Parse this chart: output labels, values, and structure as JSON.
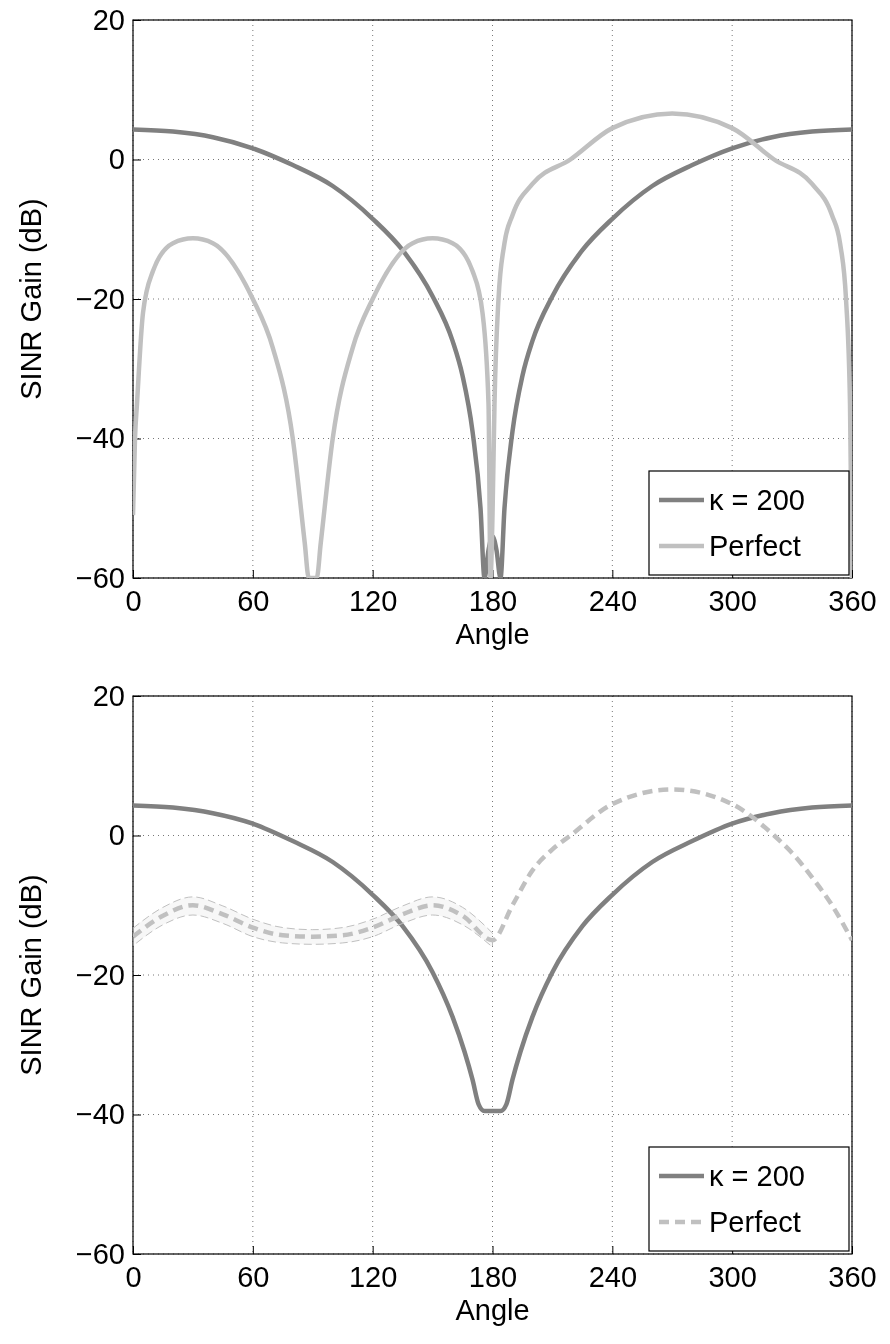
{
  "chart_data": [
    {
      "type": "line",
      "xlabel": "Angle",
      "ylabel": "SINR Gain (dB)",
      "xlim": [
        0,
        360
      ],
      "ylim": [
        -60,
        20
      ],
      "xticks": [
        0,
        60,
        120,
        180,
        240,
        300,
        360
      ],
      "yticks": [
        -60,
        -40,
        -20,
        0,
        20
      ],
      "grid": true,
      "legend": "bottom right",
      "series": [
        {
          "name": "κ = 200",
          "color": "#808080",
          "line_style": "solid",
          "x": [
            0,
            20,
            40,
            60,
            80,
            100,
            120,
            135,
            150,
            160,
            165,
            170,
            174,
            176,
            178,
            180,
            182,
            184,
            186,
            190,
            195,
            200,
            210,
            225,
            240,
            260,
            280,
            300,
            320,
            340,
            360
          ],
          "values": [
            4.3,
            4.0,
            3.2,
            1.6,
            -0.8,
            -3.8,
            -8.5,
            -13,
            -19.6,
            -26,
            -31,
            -39,
            -50,
            -60,
            -56,
            -54,
            -56,
            -60,
            -50,
            -39,
            -31,
            -26,
            -19.6,
            -13,
            -8.5,
            -3.8,
            -0.8,
            1.6,
            3.2,
            4.0,
            4.3
          ]
        },
        {
          "name": "Perfect",
          "color": "#c0c0c0",
          "line_style": "solid",
          "x": [
            0,
            1,
            2,
            5,
            10,
            20,
            30,
            40,
            60,
            70,
            80,
            86,
            88,
            92,
            94,
            100,
            110,
            120,
            140,
            150,
            160,
            170,
            175,
            178,
            179,
            180,
            181,
            183,
            186,
            190,
            200,
            219,
            240,
            270,
            300,
            321,
            340,
            350,
            354,
            357,
            359,
            360
          ],
          "values": [
            -51,
            -40,
            -35,
            -22,
            -16,
            -12,
            -11.3,
            -12,
            -20,
            -27,
            -40,
            -55,
            -60,
            -60,
            -55,
            -40,
            -27,
            -20,
            -12,
            -11.3,
            -12,
            -16,
            -22,
            -35,
            -60,
            -51,
            -35,
            -20,
            -12,
            -8,
            -3.5,
            0,
            4.5,
            6.6,
            4.5,
            0,
            -3.5,
            -8,
            -12,
            -20,
            -35,
            -60
          ]
        }
      ]
    },
    {
      "type": "line",
      "xlabel": "Angle",
      "ylabel": "SINR Gain (dB)",
      "xlim": [
        0,
        360
      ],
      "ylim": [
        -60,
        20
      ],
      "xticks": [
        0,
        60,
        120,
        180,
        240,
        300,
        360
      ],
      "yticks": [
        -60,
        -40,
        -20,
        0,
        20
      ],
      "grid": true,
      "legend": "bottom right",
      "series": [
        {
          "name": "κ = 200",
          "color": "#808080",
          "line_style": "solid",
          "x": [
            0,
            20,
            40,
            60,
            80,
            100,
            120,
            135,
            150,
            160,
            166,
            170,
            173,
            176,
            180,
            184,
            187,
            190,
            194,
            200,
            210,
            225,
            240,
            260,
            280,
            300,
            320,
            340,
            360
          ],
          "values": [
            4.3,
            4.0,
            3.2,
            1.7,
            -0.8,
            -3.8,
            -8.5,
            -13,
            -19.6,
            -26,
            -31,
            -35,
            -38.5,
            -39.5,
            -39.5,
            -39.5,
            -38.5,
            -35,
            -31,
            -26,
            -19.6,
            -13,
            -8.5,
            -3.8,
            -0.8,
            1.7,
            3.2,
            4.0,
            4.3
          ]
        },
        {
          "name": "Perfect",
          "color": "#c0c0c0",
          "line_style": "dashed",
          "x": [
            0,
            15,
            30,
            45,
            60,
            75,
            90,
            105,
            120,
            135,
            150,
            165,
            180,
            190,
            200,
            210,
            219,
            240,
            270,
            300,
            321,
            330,
            340,
            350,
            360
          ],
          "values": [
            -14.5,
            -11.5,
            -10,
            -11.3,
            -13.2,
            -14.3,
            -14.5,
            -14.3,
            -13.2,
            -11.3,
            -10,
            -11.5,
            -15,
            -10,
            -5,
            -2,
            0,
            4.5,
            6.6,
            4.5,
            0,
            -2.5,
            -6,
            -10,
            -15
          ],
          "upper": [
            -13.3,
            -10.3,
            -8.8,
            -10.1,
            -12,
            -13.2,
            -13.5,
            -13.2,
            -12,
            -10.1,
            -8.8,
            -10.3,
            -14,
            null,
            null,
            null,
            null,
            null,
            null,
            null,
            null,
            null,
            null,
            null,
            null
          ],
          "lower": [
            -15.8,
            -12.8,
            -11.4,
            -12.6,
            -14.5,
            -15.4,
            -15.6,
            -15.4,
            -14.5,
            -12.6,
            -11.4,
            -12.8,
            -16,
            null,
            null,
            null,
            null,
            null,
            null,
            null,
            null,
            null,
            null,
            null,
            null
          ]
        }
      ]
    }
  ]
}
